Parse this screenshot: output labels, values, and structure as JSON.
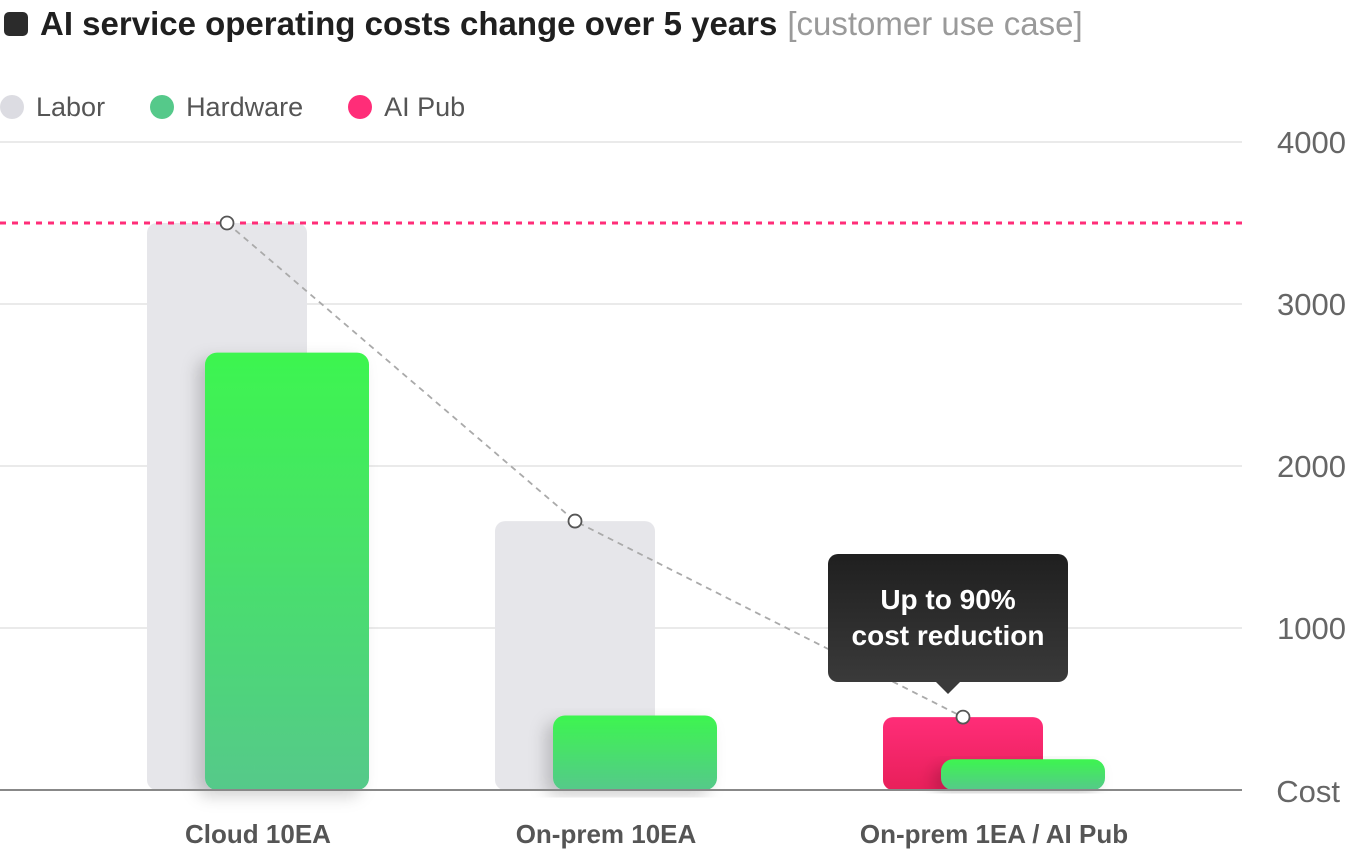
{
  "header": {
    "title": "AI service operating costs change over 5 years",
    "subtitle": "[customer use case]"
  },
  "legend": [
    {
      "label": "Labor",
      "color": "#dcdce2"
    },
    {
      "label": "Hardware",
      "color": "#55c98a"
    },
    {
      "label": "AI Pub",
      "color": "#ff2d78"
    }
  ],
  "tooltip": {
    "line1": "Up to 90%",
    "line2": "cost reduction"
  },
  "chart_data": {
    "type": "bar",
    "categories": [
      "Cloud 10EA",
      "On-prem 10EA",
      "On-prem 1EA / AI Pub"
    ],
    "series": [
      {
        "name": "Labor",
        "values": [
          3500,
          1660,
          null
        ],
        "color": "#e6e6ea"
      },
      {
        "name": "AI Pub",
        "values": [
          null,
          null,
          450
        ],
        "color": "#ff2d78"
      },
      {
        "name": "Hardware",
        "values": [
          2700,
          460,
          190
        ],
        "color": "#3df54f"
      }
    ],
    "trend_points": [
      3500,
      1660,
      450
    ],
    "reference_line": 3500,
    "reference_line_color": "#ff2d78",
    "ylim": [
      0,
      4000
    ],
    "yticks": [
      1000,
      2000,
      3000,
      4000
    ],
    "ytick_labels": [
      "1000",
      "2000",
      "3000",
      "4000"
    ],
    "ylabel": "Cost",
    "xlabel": "",
    "grid": true
  }
}
